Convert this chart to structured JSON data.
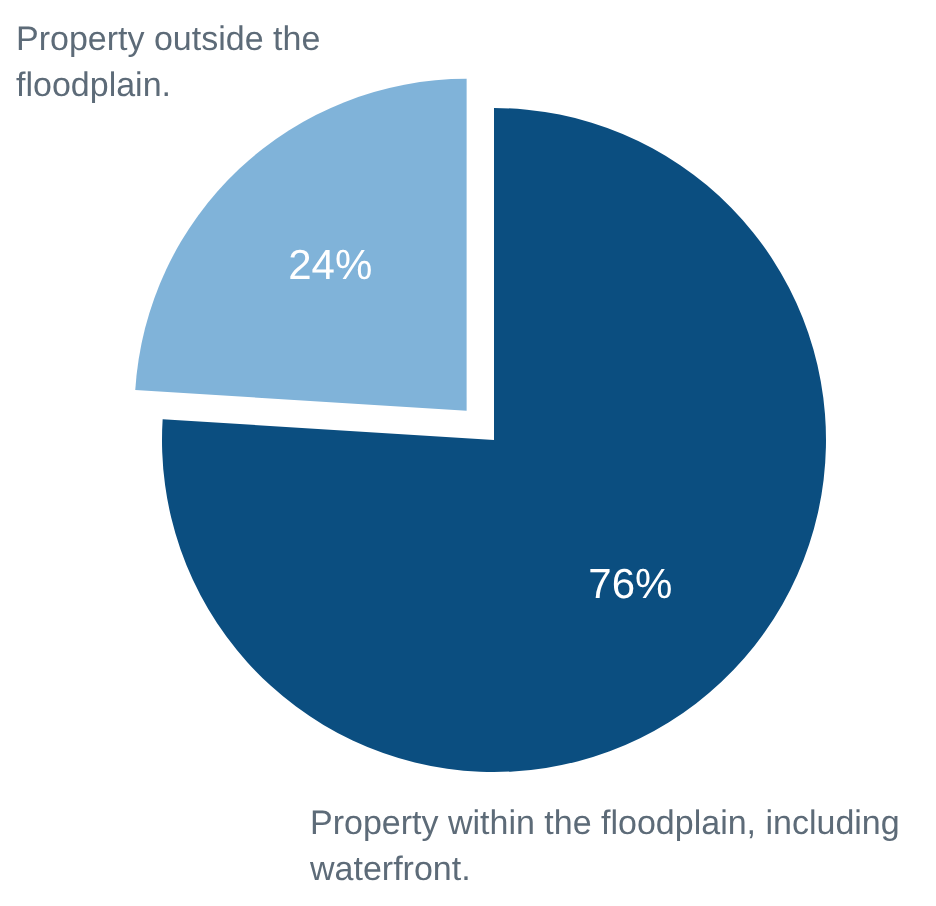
{
  "chart_data": {
    "type": "pie",
    "categories": [
      "Property within the floodplain, including waterfront.",
      "Property outside the floodplain."
    ],
    "values": [
      76,
      24
    ],
    "colors": [
      "#0b4e80",
      "#80b3d9"
    ],
    "value_labels": [
      "76%",
      "24%"
    ]
  }
}
